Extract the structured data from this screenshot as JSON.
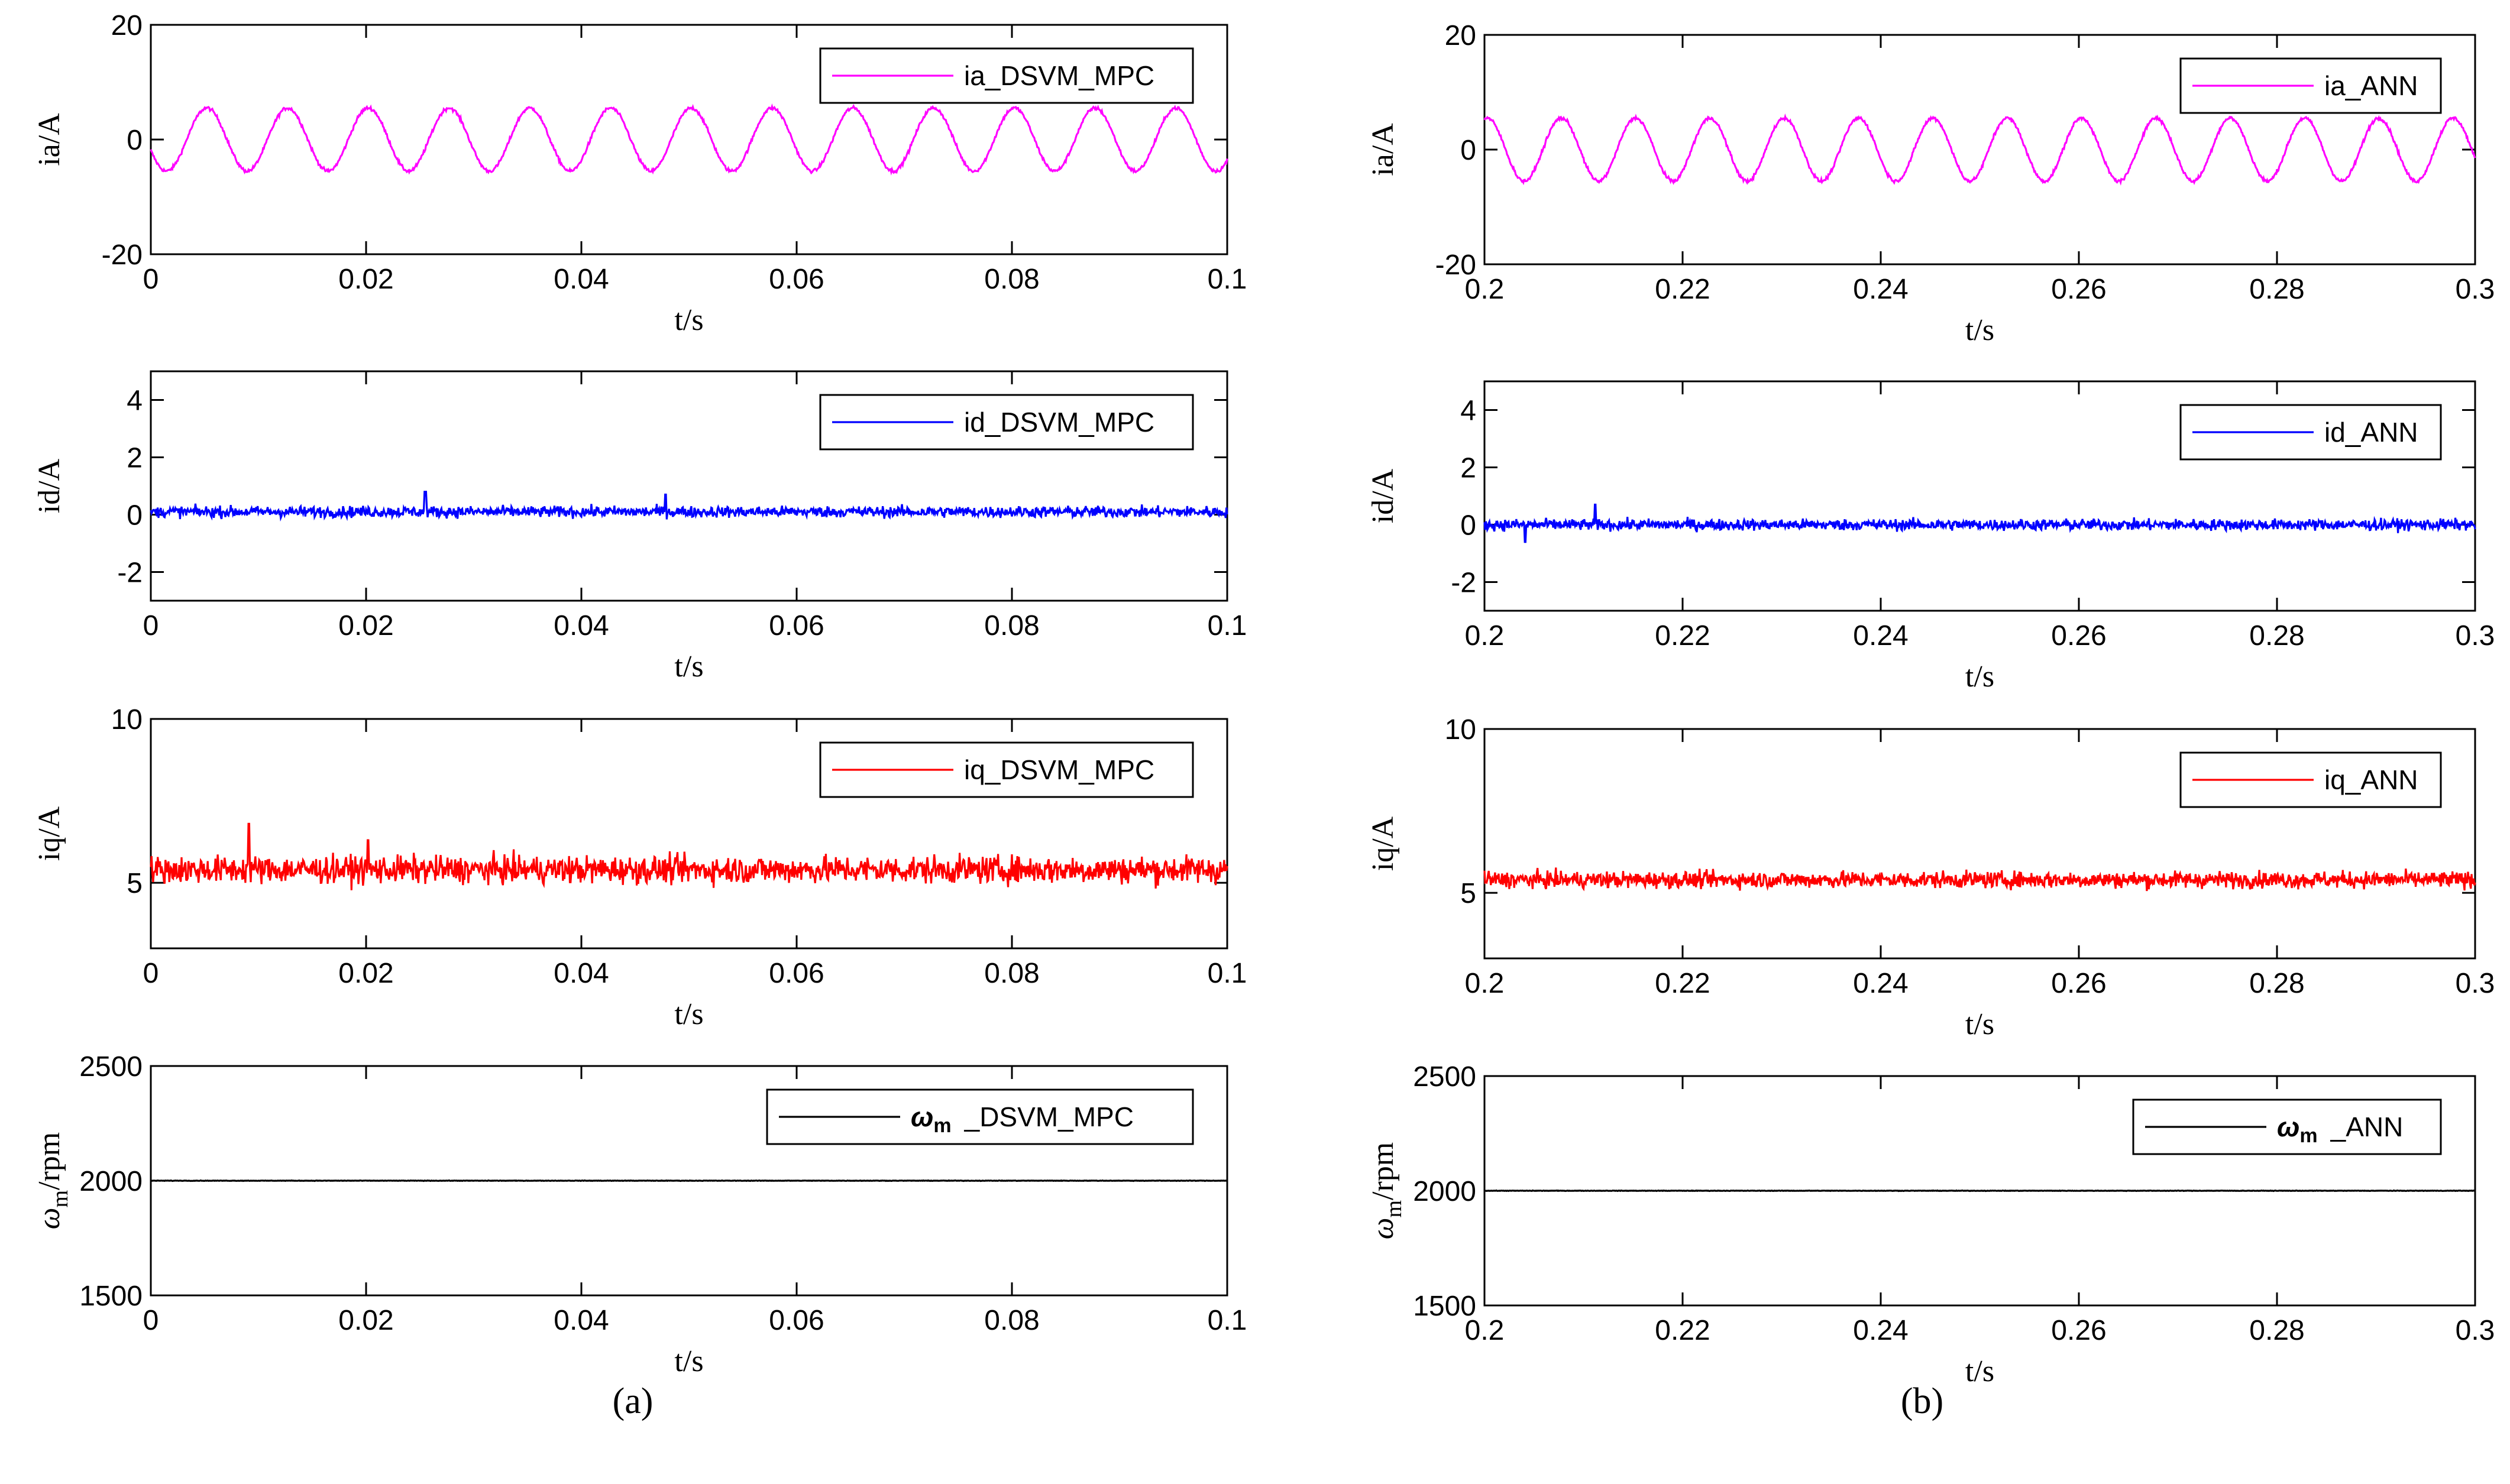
{
  "captions": {
    "left": "(a)",
    "right": "(b)"
  },
  "chart_data": [
    {
      "type": "line",
      "panel": "a",
      "row": 0,
      "title": "",
      "xlabel": "t/s",
      "ylabel": "ia/A",
      "xlim": [
        0,
        0.1
      ],
      "ylim": [
        -20,
        20
      ],
      "xticks": [
        0,
        0.02,
        0.04,
        0.06,
        0.08,
        0.1
      ],
      "xtick_labels": [
        "0",
        "0.02",
        "0.04",
        "0.06",
        "0.08",
        "0.1"
      ],
      "yticks": [
        -20,
        0,
        20
      ],
      "ytick_labels": [
        "-20",
        "0",
        "20"
      ],
      "legend_position": "top-right",
      "series": [
        {
          "name": "ia_DSVM_MPC",
          "color": "#ff00ff",
          "kind": "sine",
          "amplitude": 5.5,
          "frequency_hz": 133.3,
          "phase_deg": 200,
          "offset": 0,
          "noise": 0.5
        }
      ]
    },
    {
      "type": "line",
      "panel": "a",
      "row": 1,
      "title": "",
      "xlabel": "t/s",
      "ylabel": "id/A",
      "xlim": [
        0,
        0.1
      ],
      "ylim": [
        -3,
        5
      ],
      "xticks": [
        0,
        0.02,
        0.04,
        0.06,
        0.08,
        0.1
      ],
      "xtick_labels": [
        "0",
        "0.02",
        "0.04",
        "0.06",
        "0.08",
        "0.1"
      ],
      "yticks": [
        -2,
        0,
        2,
        4
      ],
      "ytick_labels": [
        "-2",
        "0",
        "2",
        "4"
      ],
      "legend_position": "top-right",
      "series": [
        {
          "name": "id_DSVM_MPC",
          "color": "#0000ff",
          "kind": "noise",
          "mean": 0.1,
          "noise": 0.35,
          "spikes": [
            [
              0.0255,
              0.8
            ],
            [
              0.0478,
              0.7
            ]
          ]
        }
      ]
    },
    {
      "type": "line",
      "panel": "a",
      "row": 2,
      "title": "",
      "xlabel": "t/s",
      "ylabel": "iq/A",
      "xlim": [
        0,
        0.1
      ],
      "ylim": [
        3,
        10
      ],
      "xticks": [
        0,
        0.02,
        0.04,
        0.06,
        0.08,
        0.1
      ],
      "xtick_labels": [
        "0",
        "0.02",
        "0.04",
        "0.06",
        "0.08",
        "0.1"
      ],
      "yticks": [
        5,
        10
      ],
      "ytick_labels": [
        "5",
        "10"
      ],
      "legend_position": "top-right",
      "series": [
        {
          "name": "iq_DSVM_MPC",
          "color": "#ff0000",
          "kind": "noise",
          "mean": 5.4,
          "noise": 0.75,
          "spikes": [
            [
              0.0091,
              6.8
            ],
            [
              0.0202,
              6.3
            ]
          ]
        }
      ]
    },
    {
      "type": "line",
      "panel": "a",
      "row": 3,
      "title": "",
      "xlabel": "t/s",
      "ylabel": "ω_m/rpm",
      "xlim": [
        0,
        0.1
      ],
      "ylim": [
        1500,
        2500
      ],
      "xticks": [
        0,
        0.02,
        0.04,
        0.06,
        0.08,
        0.1
      ],
      "xtick_labels": [
        "0",
        "0.02",
        "0.04",
        "0.06",
        "0.08",
        "0.1"
      ],
      "yticks": [
        1500,
        2000,
        2500
      ],
      "ytick_labels": [
        "1500",
        "2000",
        "2500"
      ],
      "legend_position": "top-right",
      "series": [
        {
          "name": "_DSVM_MPC",
          "symbol": "ω",
          "subscript": "m",
          "color": "#000000",
          "kind": "flat",
          "mean": 2000,
          "noise": 2
        }
      ]
    },
    {
      "type": "line",
      "panel": "b",
      "row": 0,
      "title": "",
      "xlabel": "t/s",
      "ylabel": "ia/A",
      "xlim": [
        0.2,
        0.3
      ],
      "ylim": [
        -20,
        20
      ],
      "xticks": [
        0.2,
        0.22,
        0.24,
        0.26,
        0.28,
        0.3
      ],
      "xtick_labels": [
        "0.2",
        "0.22",
        "0.24",
        "0.26",
        "0.28",
        "0.3"
      ],
      "yticks": [
        -20,
        0,
        20
      ],
      "ytick_labels": [
        "-20",
        "0",
        "20"
      ],
      "legend_position": "top-right",
      "series": [
        {
          "name": "ia_ANN",
          "color": "#ff00ff",
          "kind": "sine",
          "amplitude": 5.5,
          "frequency_hz": 133.3,
          "phase_deg": 200,
          "offset": 0,
          "noise": 0.5
        }
      ]
    },
    {
      "type": "line",
      "panel": "b",
      "row": 1,
      "title": "",
      "xlabel": "t/s",
      "ylabel": "id/A",
      "xlim": [
        0.2,
        0.3
      ],
      "ylim": [
        -3,
        5
      ],
      "xticks": [
        0.2,
        0.22,
        0.24,
        0.26,
        0.28,
        0.3
      ],
      "xtick_labels": [
        "0.2",
        "0.22",
        "0.24",
        "0.26",
        "0.28",
        "0.3"
      ],
      "yticks": [
        -2,
        0,
        2,
        4
      ],
      "ytick_labels": [
        "-2",
        "0",
        "2",
        "4"
      ],
      "legend_position": "top-right",
      "series": [
        {
          "name": "id_ANN",
          "color": "#0000ff",
          "kind": "noise",
          "mean": 0.0,
          "noise": 0.35,
          "spikes": [
            [
              0.2112,
              0.7
            ],
            [
              0.2041,
              -0.6
            ]
          ]
        }
      ]
    },
    {
      "type": "line",
      "panel": "b",
      "row": 2,
      "title": "",
      "xlabel": "t/s",
      "ylabel": "iq/A",
      "xlim": [
        0.2,
        0.3
      ],
      "ylim": [
        3,
        10
      ],
      "xticks": [
        0.2,
        0.22,
        0.24,
        0.26,
        0.28,
        0.3
      ],
      "xtick_labels": [
        "0.2",
        "0.22",
        "0.24",
        "0.26",
        "0.28",
        "0.3"
      ],
      "yticks": [
        5,
        10
      ],
      "ytick_labels": [
        "5",
        "10"
      ],
      "legend_position": "top-right",
      "series": [
        {
          "name": "iq_ANN",
          "color": "#ff0000",
          "kind": "noise",
          "mean": 5.4,
          "noise": 0.45,
          "spikes": []
        }
      ]
    },
    {
      "type": "line",
      "panel": "b",
      "row": 3,
      "title": "",
      "xlabel": "t/s",
      "ylabel": "ω_m/rpm",
      "xlim": [
        0.2,
        0.3
      ],
      "ylim": [
        1500,
        2500
      ],
      "xticks": [
        0.2,
        0.22,
        0.24,
        0.26,
        0.28,
        0.3
      ],
      "xtick_labels": [
        "0.2",
        "0.22",
        "0.24",
        "0.26",
        "0.28",
        "0.3"
      ],
      "yticks": [
        1500,
        2000,
        2500
      ],
      "ytick_labels": [
        "1500",
        "2000",
        "2500"
      ],
      "legend_position": "top-right",
      "series": [
        {
          "name": "_ANN",
          "symbol": "ω",
          "subscript": "m",
          "color": "#000000",
          "kind": "flat",
          "mean": 2000,
          "noise": 2
        }
      ]
    }
  ]
}
